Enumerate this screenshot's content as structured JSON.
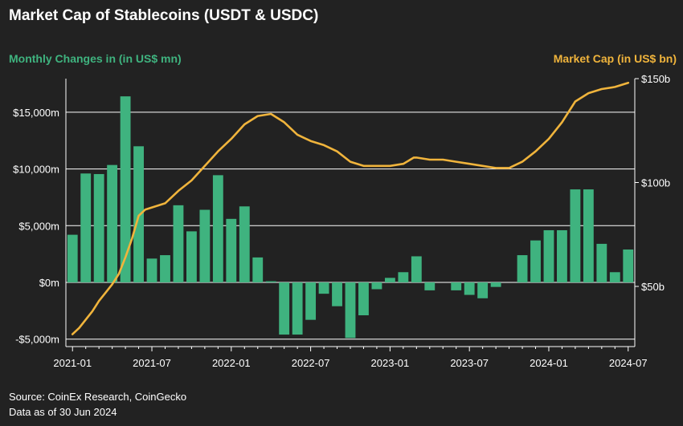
{
  "title": "Market Cap of Stablecoins (USDT & USDC)",
  "left_axis_title": "Monthly Changes in (in US$ mn)",
  "right_axis_title": "Market Cap (in US$ bn)",
  "source_lines": [
    "Source: CoinEx Research, CoinGecko",
    "Data as of 30 Jun 2024"
  ],
  "colors": {
    "bars": "#3fb37f",
    "line": "#f0b43c",
    "background": "#222222",
    "grid": "#ffffff",
    "text": "#ffffff"
  },
  "chart_data": {
    "type": "bar+line",
    "x": [
      "2021-01",
      "2021-02",
      "2021-03",
      "2021-04",
      "2021-05",
      "2021-06",
      "2021-07",
      "2021-08",
      "2021-09",
      "2021-10",
      "2021-11",
      "2021-12",
      "2022-01",
      "2022-02",
      "2022-03",
      "2022-04",
      "2022-05",
      "2022-06",
      "2022-07",
      "2022-08",
      "2022-09",
      "2022-10",
      "2022-11",
      "2022-12",
      "2023-01",
      "2023-02",
      "2023-03",
      "2023-04",
      "2023-05",
      "2023-06",
      "2023-07",
      "2023-08",
      "2023-09",
      "2023-10",
      "2023-11",
      "2023-12",
      "2024-01",
      "2024-02",
      "2024-03",
      "2024-04",
      "2024-05",
      "2024-06",
      "2024-07"
    ],
    "x_tick_labels": [
      "2021-01",
      "2021-07",
      "2022-01",
      "2022-07",
      "2023-01",
      "2023-07",
      "2024-01",
      "2024-07"
    ],
    "series": [
      {
        "axis": "left",
        "kind": "bar",
        "values": [
          4200,
          9600,
          9550,
          10350,
          16400,
          12000,
          2100,
          2400,
          6800,
          4500,
          6400,
          9450,
          5600,
          6700,
          2200,
          100,
          -4600,
          -4600,
          -3300,
          -1000,
          -2100,
          -4900,
          -2900,
          -600,
          400,
          900,
          2300,
          -700,
          0,
          -700,
          -1100,
          -1400,
          -400,
          0,
          2400,
          3700,
          4600,
          4600,
          8200,
          8200,
          3400,
          900,
          2900
        ]
      },
      {
        "axis": "right",
        "kind": "line",
        "points": [
          [
            0,
            27
          ],
          [
            0.5,
            30
          ],
          [
            1,
            34
          ],
          [
            1.5,
            38
          ],
          [
            2,
            43
          ],
          [
            2.5,
            47
          ],
          [
            3,
            51
          ],
          [
            3.5,
            56
          ],
          [
            4,
            64
          ],
          [
            4.5,
            73
          ],
          [
            5,
            84
          ],
          [
            5.5,
            87
          ],
          [
            6,
            88
          ],
          [
            7,
            90
          ],
          [
            8,
            96
          ],
          [
            9,
            101
          ],
          [
            10,
            108
          ],
          [
            11,
            115
          ],
          [
            12,
            121
          ],
          [
            13,
            128
          ],
          [
            14,
            132
          ],
          [
            15,
            133
          ],
          [
            16,
            129
          ],
          [
            17,
            123
          ],
          [
            18,
            120
          ],
          [
            19,
            118
          ],
          [
            20,
            115
          ],
          [
            21,
            110
          ],
          [
            22,
            108
          ],
          [
            23,
            108
          ],
          [
            24,
            108
          ],
          [
            25,
            109
          ],
          [
            25.8,
            112
          ],
          [
            26,
            112
          ],
          [
            27,
            111
          ],
          [
            28,
            111
          ],
          [
            29,
            110
          ],
          [
            30,
            109
          ],
          [
            31,
            108
          ],
          [
            32,
            107
          ],
          [
            33,
            107
          ],
          [
            34,
            110
          ],
          [
            35,
            115
          ],
          [
            36,
            121
          ],
          [
            37,
            129
          ],
          [
            38,
            139
          ],
          [
            39,
            143
          ],
          [
            40,
            145
          ],
          [
            41,
            146
          ],
          [
            42,
            148
          ]
        ]
      }
    ],
    "left_axis": {
      "ticks": [
        -5000,
        0,
        5000,
        10000,
        15000
      ],
      "tick_labels": [
        "-$5,000m",
        "$0m",
        "$5,000m",
        "$10,000m",
        "$15,000m"
      ],
      "range": [
        -5500,
        18000
      ]
    },
    "right_axis": {
      "ticks": [
        50,
        100,
        150
      ],
      "tick_labels": [
        "$50b",
        "$100b",
        "$150b"
      ],
      "range": [
        20,
        150
      ]
    },
    "grid": true
  }
}
